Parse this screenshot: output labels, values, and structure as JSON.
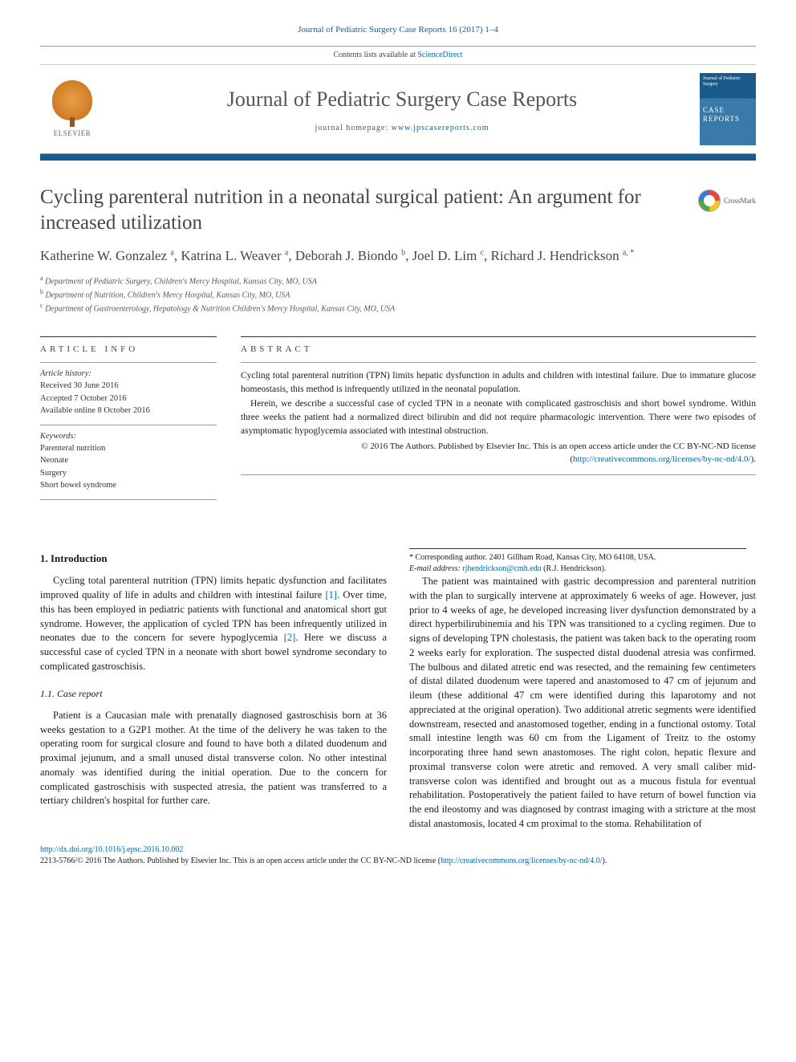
{
  "citation": "Journal of Pediatric Surgery Case Reports 16 (2017) 1–4",
  "masthead": {
    "contents_line_prefix": "Contents lists available at ",
    "contents_link": "ScienceDirect",
    "journal_title": "Journal of Pediatric Surgery Case Reports",
    "homepage_label": "journal homepage: ",
    "homepage_url": "www.jpscasereports.com",
    "publisher_label": "ELSEVIER",
    "cover_top": "Journal of Pediatric Surgery",
    "cover_mid": "CASE REPORTS"
  },
  "article": {
    "title": "Cycling parenteral nutrition in a neonatal surgical patient: An argument for increased utilization",
    "crossmark_label": "CrossMark",
    "authors_html": "Katherine W. Gonzalez <sup>a</sup>, Katrina L. Weaver <sup>a</sup>, Deborah J. Biondo <sup>b</sup>, Joel D. Lim <sup>c</sup>, Richard J. Hendrickson <sup>a, <span class='corr'>*</span></sup>",
    "affiliations": [
      {
        "key": "a",
        "text": "Department of Pediatric Surgery, Children's Mercy Hospital, Kansas City, MO, USA"
      },
      {
        "key": "b",
        "text": "Department of Nutrition, Children's Mercy Hospital, Kansas City, MO, USA"
      },
      {
        "key": "c",
        "text": "Department of Gastroenterology, Hepatology & Nutrition Children's Mercy Hospital, Kansas City, MO, USA"
      }
    ]
  },
  "info": {
    "heading": "ARTICLE INFO",
    "history_label": "Article history:",
    "history": [
      "Received 30 June 2016",
      "Accepted 7 October 2016",
      "Available online 8 October 2016"
    ],
    "keywords_label": "Keywords:",
    "keywords": [
      "Parenteral nutrition",
      "Neonate",
      "Surgery",
      "Short bowel syndrome"
    ]
  },
  "abstract": {
    "heading": "ABSTRACT",
    "p1": "Cycling total parenteral nutrition (TPN) limits hepatic dysfunction in adults and children with intestinal failure. Due to immature glucose homeostasis, this method is infrequently utilized in the neonatal population.",
    "p2": "Herein, we describe a successful case of cycled TPN in a neonate with complicated gastroschisis and short bowel syndrome. Within three weeks the patient had a normalized direct bilirubin and did not require pharmacologic intervention. There were two episodes of asymptomatic hypoglycemia associated with intestinal obstruction.",
    "copyright_prefix": "© 2016 The Authors. Published by Elsevier Inc. This is an open access article under the CC BY-NC-ND license (",
    "copyright_link": "http://creativecommons.org/licenses/by-nc-nd/4.0/",
    "copyright_suffix": ")."
  },
  "body": {
    "section1_heading": "1. Introduction",
    "section1_p1": "Cycling total parenteral nutrition (TPN) limits hepatic dysfunction and facilitates improved quality of life in adults and children with intestinal failure [1]. Over time, this has been employed in pediatric patients with functional and anatomical short gut syndrome. However, the application of cycled TPN has been infrequently utilized in neonates due to the concern for severe hypoglycemia [2]. Here we discuss a successful case of cycled TPN in a neonate with short bowel syndrome secondary to complicated gastroschisis.",
    "section11_heading": "1.1. Case report",
    "section11_p1": "Patient is a Caucasian male with prenatally diagnosed gastroschisis born at 36 weeks gestation to a G2P1 mother. At the time of the delivery he was taken to the operating room for surgical closure and found to have both a dilated duodenum and proximal jejunum, and a small unused distal transverse colon. No other intestinal anomaly was identified during the initial operation. Due to the concern for complicated gastroschisis with suspected atresia, the patient was transferred to a tertiary children's hospital for further care.",
    "section11_p2": "The patient was maintained with gastric decompression and parenteral nutrition with the plan to surgically intervene at approximately 6 weeks of age. However, just prior to 4 weeks of age, he developed increasing liver dysfunction demonstrated by a direct hyperbilirubinemia and his TPN was transitioned to a cycling regimen. Due to signs of developing TPN cholestasis, the patient was taken back to the operating room 2 weeks early for exploration. The suspected distal duodenal atresia was confirmed. The bulbous and dilated atretic end was resected, and the remaining few centimeters of distal dilated duodenum were tapered and anastomosed to 47 cm of jejunum and ileum (these additional 47 cm were identified during this laparotomy and not appreciated at the original operation). Two additional atretic segments were identified downstream, resected and anastomosed together, ending in a functional ostomy. Total small intestine length was 60 cm from the Ligament of Treitz to the ostomy incorporating three hand sewn anastomoses. The right colon, hepatic flexure and proximal transverse colon were atretic and removed. A very small caliber mid-transverse colon was identified and brought out as a mucous fistula for eventual rehabilitation. Postoperatively the patient failed to have return of bowel function via the end ileostomy and was diagnosed by contrast imaging with a stricture at the most distal anastomosis, located 4 cm proximal to the stoma. Rehabilitation of"
  },
  "footnote": {
    "corr_label": "* Corresponding author. ",
    "corr_address": "2401 Gillham Road, Kansas City, MO 64108, USA.",
    "email_label": "E-mail address: ",
    "email": "rjhendrickson@cmh.edu",
    "email_name": " (R.J. Hendrickson)."
  },
  "footer": {
    "doi": "http://dx.doi.org/10.1016/j.epsc.2016.10.002",
    "issn_line_prefix": "2213-5766/© 2016 The Authors. Published by Elsevier Inc. This is an open access article under the CC BY-NC-ND license (",
    "issn_link": "http://creativecommons.org/licenses/by-nc-nd/4.0/",
    "issn_suffix": ")."
  },
  "colors": {
    "link": "#0066a6",
    "accent": "#1a5a8a",
    "text": "#1a1a1a",
    "muted": "#555555"
  }
}
